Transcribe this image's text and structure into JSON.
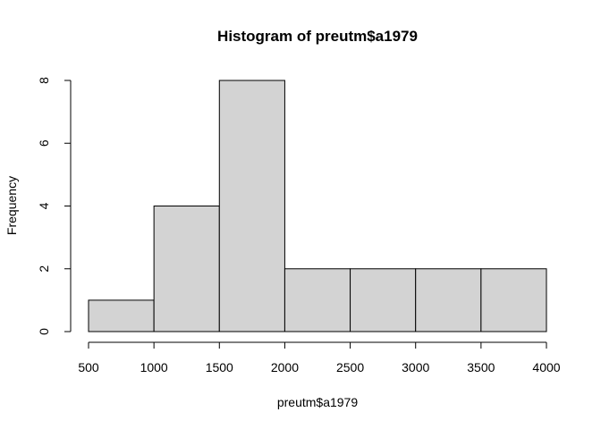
{
  "chart_data": {
    "type": "bar",
    "title": "Histogram of preutm$a1979",
    "xlabel": "preutm$a1979",
    "ylabel": "Frequency",
    "bins": [
      {
        "from": 500,
        "to": 1000,
        "count": 1
      },
      {
        "from": 1000,
        "to": 1500,
        "count": 4
      },
      {
        "from": 1500,
        "to": 2000,
        "count": 8
      },
      {
        "from": 2000,
        "to": 2500,
        "count": 2
      },
      {
        "from": 2500,
        "to": 3000,
        "count": 2
      },
      {
        "from": 3000,
        "to": 3500,
        "count": 2
      },
      {
        "from": 3500,
        "to": 4000,
        "count": 2
      }
    ],
    "xlim": [
      500,
      4000
    ],
    "ylim": [
      0,
      8
    ],
    "x_ticks": [
      "500",
      "1000",
      "1500",
      "2000",
      "2500",
      "3000",
      "3500",
      "4000"
    ],
    "y_ticks": [
      "0",
      "2",
      "4",
      "6",
      "8"
    ],
    "bar_fill": "#d3d3d3",
    "bar_stroke": "#000000",
    "grid": false,
    "legend": "none"
  }
}
